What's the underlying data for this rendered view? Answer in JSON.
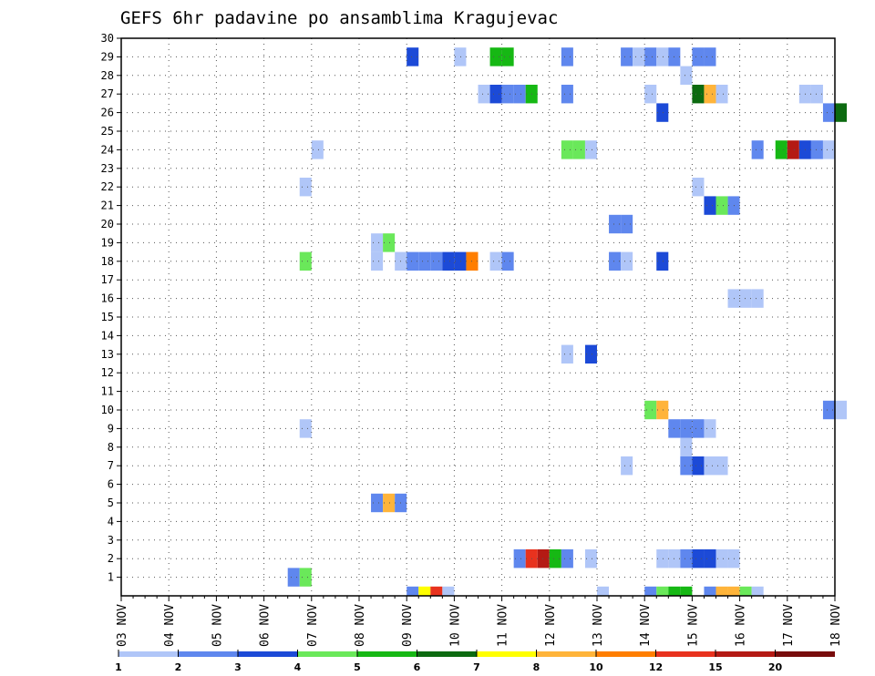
{
  "chart_data": {
    "type": "heatmap",
    "title": "GEFS 6hr padavine po ansamblima Kragujevac",
    "xlabel": "",
    "ylabel": "",
    "x_tick_labels": [
      "03 NOV",
      "04 NOV",
      "05 NOV",
      "06 NOV",
      "07 NOV",
      "08 NOV",
      "09 NOV",
      "10 NOV",
      "11 NOV",
      "12 NOV",
      "13 NOV",
      "14 NOV",
      "15 NOV",
      "16 NOV",
      "17 NOV",
      "18 NOV"
    ],
    "x_range_days": [
      0,
      15
    ],
    "y_tick_labels": [
      "1",
      "2",
      "3",
      "4",
      "5",
      "6",
      "7",
      "8",
      "9",
      "10",
      "11",
      "12",
      "13",
      "14",
      "15",
      "16",
      "17",
      "18",
      "19",
      "20",
      "21",
      "22",
      "23",
      "24",
      "25",
      "26",
      "27",
      "28",
      "29",
      "30"
    ],
    "y_range": [
      0,
      30
    ],
    "grid": true,
    "legend_placement": "bottom",
    "legend": {
      "colors": [
        "#b0c6f8",
        "#5f87ee",
        "#1c4ad7",
        "#6ae85a",
        "#16b814",
        "#0c6a10",
        "#ffff00",
        "#ffb43a",
        "#ff7e00",
        "#e8321e",
        "#b41a14",
        "#780c0c"
      ],
      "labels": [
        "1",
        "2",
        "3",
        "4",
        "5",
        "6",
        "7",
        "8",
        "10",
        "12",
        "15",
        "20"
      ]
    },
    "cells": [
      {
        "t": 3.5,
        "m": 1,
        "c": 2
      },
      {
        "t": 3.75,
        "m": 1,
        "c": 4
      },
      {
        "t": 8.25,
        "m": 2,
        "c": 2
      },
      {
        "t": 8.5,
        "m": 2,
        "c": 10
      },
      {
        "t": 8.75,
        "m": 2,
        "c": 11
      },
      {
        "t": 9.0,
        "m": 2,
        "c": 5
      },
      {
        "t": 9.25,
        "m": 2,
        "c": 2
      },
      {
        "t": 9.75,
        "m": 2,
        "c": 1
      },
      {
        "t": 11.25,
        "m": 2,
        "c": 1
      },
      {
        "t": 11.5,
        "m": 2,
        "c": 1
      },
      {
        "t": 11.75,
        "m": 2,
        "c": 2
      },
      {
        "t": 12.0,
        "m": 2,
        "c": 3
      },
      {
        "t": 12.25,
        "m": 2,
        "c": 3
      },
      {
        "t": 12.5,
        "m": 2,
        "c": 1
      },
      {
        "t": 12.75,
        "m": 2,
        "c": 1
      },
      {
        "t": 5.25,
        "m": 5,
        "c": 2
      },
      {
        "t": 5.5,
        "m": 5,
        "c": 8
      },
      {
        "t": 5.75,
        "m": 5,
        "c": 2
      },
      {
        "t": 10.5,
        "m": 7,
        "c": 1
      },
      {
        "t": 11.75,
        "m": 7,
        "c": 2
      },
      {
        "t": 12.0,
        "m": 7,
        "c": 3
      },
      {
        "t": 12.25,
        "m": 7,
        "c": 1
      },
      {
        "t": 12.5,
        "m": 7,
        "c": 1
      },
      {
        "t": 11.75,
        "m": 8,
        "c": 1
      },
      {
        "t": 3.75,
        "m": 9,
        "c": 1
      },
      {
        "t": 11.5,
        "m": 9,
        "c": 2
      },
      {
        "t": 11.75,
        "m": 9,
        "c": 2
      },
      {
        "t": 12.0,
        "m": 9,
        "c": 2
      },
      {
        "t": 12.25,
        "m": 9,
        "c": 1
      },
      {
        "t": 11.0,
        "m": 10,
        "c": 4
      },
      {
        "t": 11.25,
        "m": 10,
        "c": 8
      },
      {
        "t": 14.75,
        "m": 10,
        "c": 2
      },
      {
        "t": 15.0,
        "m": 10,
        "c": 1
      },
      {
        "t": 9.25,
        "m": 13,
        "c": 1
      },
      {
        "t": 9.75,
        "m": 13,
        "c": 3
      },
      {
        "t": 12.75,
        "m": 16,
        "c": 1
      },
      {
        "t": 13.0,
        "m": 16,
        "c": 1
      },
      {
        "t": 13.25,
        "m": 16,
        "c": 1
      },
      {
        "t": 3.75,
        "m": 18,
        "c": 4
      },
      {
        "t": 5.25,
        "m": 18,
        "c": 1
      },
      {
        "t": 5.75,
        "m": 18,
        "c": 1
      },
      {
        "t": 6.0,
        "m": 18,
        "c": 2
      },
      {
        "t": 6.25,
        "m": 18,
        "c": 2
      },
      {
        "t": 6.5,
        "m": 18,
        "c": 2
      },
      {
        "t": 6.75,
        "m": 18,
        "c": 3
      },
      {
        "t": 7.0,
        "m": 18,
        "c": 3
      },
      {
        "t": 7.25,
        "m": 18,
        "c": 9
      },
      {
        "t": 7.75,
        "m": 18,
        "c": 1
      },
      {
        "t": 8.0,
        "m": 18,
        "c": 2
      },
      {
        "t": 10.25,
        "m": 18,
        "c": 2
      },
      {
        "t": 10.5,
        "m": 18,
        "c": 1
      },
      {
        "t": 11.25,
        "m": 18,
        "c": 3
      },
      {
        "t": 5.25,
        "m": 19,
        "c": 1
      },
      {
        "t": 5.5,
        "m": 19,
        "c": 4
      },
      {
        "t": 10.25,
        "m": 20,
        "c": 2
      },
      {
        "t": 10.5,
        "m": 20,
        "c": 2
      },
      {
        "t": 12.25,
        "m": 21,
        "c": 3
      },
      {
        "t": 12.5,
        "m": 21,
        "c": 4
      },
      {
        "t": 12.75,
        "m": 21,
        "c": 2
      },
      {
        "t": 3.75,
        "m": 22,
        "c": 1
      },
      {
        "t": 12.0,
        "m": 22,
        "c": 1
      },
      {
        "t": 4.0,
        "m": 24,
        "c": 1
      },
      {
        "t": 9.25,
        "m": 24,
        "c": 4
      },
      {
        "t": 9.5,
        "m": 24,
        "c": 4
      },
      {
        "t": 9.75,
        "m": 24,
        "c": 1
      },
      {
        "t": 13.25,
        "m": 24,
        "c": 2
      },
      {
        "t": 13.75,
        "m": 24,
        "c": 5
      },
      {
        "t": 14.0,
        "m": 24,
        "c": 11
      },
      {
        "t": 14.25,
        "m": 24,
        "c": 3
      },
      {
        "t": 14.5,
        "m": 24,
        "c": 2
      },
      {
        "t": 14.75,
        "m": 24,
        "c": 1
      },
      {
        "t": 11.25,
        "m": 26,
        "c": 3
      },
      {
        "t": 14.75,
        "m": 26,
        "c": 2
      },
      {
        "t": 15.0,
        "m": 26,
        "c": 6
      },
      {
        "t": 7.5,
        "m": 27,
        "c": 1
      },
      {
        "t": 7.75,
        "m": 27,
        "c": 3
      },
      {
        "t": 8.0,
        "m": 27,
        "c": 2
      },
      {
        "t": 8.25,
        "m": 27,
        "c": 2
      },
      {
        "t": 8.5,
        "m": 27,
        "c": 5
      },
      {
        "t": 9.25,
        "m": 27,
        "c": 2
      },
      {
        "t": 11.0,
        "m": 27,
        "c": 1
      },
      {
        "t": 12.0,
        "m": 27,
        "c": 6
      },
      {
        "t": 12.25,
        "m": 27,
        "c": 8
      },
      {
        "t": 12.5,
        "m": 27,
        "c": 1
      },
      {
        "t": 14.25,
        "m": 27,
        "c": 1
      },
      {
        "t": 14.5,
        "m": 27,
        "c": 1
      },
      {
        "t": 11.75,
        "m": 28,
        "c": 1
      },
      {
        "t": 6.0,
        "m": 29,
        "c": 3
      },
      {
        "t": 7.0,
        "m": 29,
        "c": 1
      },
      {
        "t": 7.75,
        "m": 29,
        "c": 5
      },
      {
        "t": 8.0,
        "m": 29,
        "c": 5
      },
      {
        "t": 9.25,
        "m": 29,
        "c": 2
      },
      {
        "t": 10.5,
        "m": 29,
        "c": 2
      },
      {
        "t": 10.75,
        "m": 29,
        "c": 1
      },
      {
        "t": 11.0,
        "m": 29,
        "c": 2
      },
      {
        "t": 11.25,
        "m": 29,
        "c": 1
      },
      {
        "t": 11.5,
        "m": 29,
        "c": 2
      },
      {
        "t": 12.0,
        "m": 29,
        "c": 2
      },
      {
        "t": 12.25,
        "m": 29,
        "c": 2
      }
    ],
    "mean_strip": [
      {
        "t": 6.0,
        "c": 2
      },
      {
        "t": 6.25,
        "c": 7
      },
      {
        "t": 6.5,
        "c": 10
      },
      {
        "t": 6.75,
        "c": 1
      },
      {
        "t": 10.0,
        "c": 1
      },
      {
        "t": 11.0,
        "c": 2
      },
      {
        "t": 11.25,
        "c": 4
      },
      {
        "t": 11.5,
        "c": 5
      },
      {
        "t": 11.75,
        "c": 5
      },
      {
        "t": 12.25,
        "c": 2
      },
      {
        "t": 12.5,
        "c": 8
      },
      {
        "t": 12.75,
        "c": 8
      },
      {
        "t": 13.0,
        "c": 4
      },
      {
        "t": 13.25,
        "c": 1
      }
    ]
  }
}
